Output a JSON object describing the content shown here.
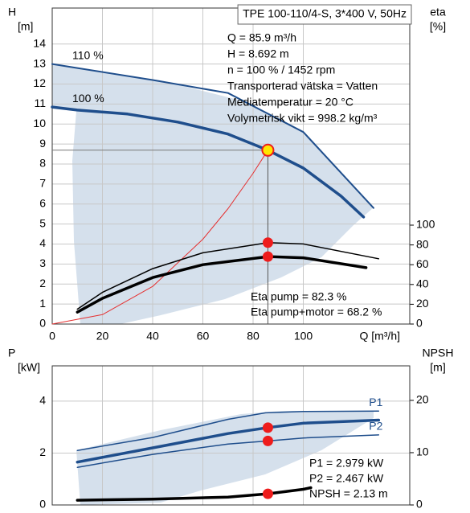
{
  "chart_data": [
    {
      "type": "line",
      "title": "TPE 100-110/4-S, 3*400 V, 50Hz",
      "ylabel": [
        "H",
        "[m]"
      ],
      "y2label": [
        "eta",
        "[%]"
      ],
      "xlabel": "Q [m³/h]",
      "xlim": [
        0,
        142.4
      ],
      "ylim": [
        0,
        15.8
      ],
      "y2lim": [
        0,
        319.5
      ],
      "xticks": [
        0,
        20,
        40,
        60,
        80,
        100
      ],
      "show_xtick_labels": true,
      "yticks": [
        0,
        1,
        2,
        3,
        4,
        5,
        6,
        7,
        8,
        9,
        10,
        11,
        12,
        13,
        14
      ],
      "y2ticks": [
        0,
        20,
        40,
        60,
        80,
        100
      ],
      "grid": true,
      "label_position": "start",
      "series": [
        {
          "name": "110 %",
          "color": "#1f4e8c",
          "width": 2,
          "x": [
            0,
            10,
            40,
            70,
            100,
            128
          ],
          "values": [
            13.0,
            12.8,
            12.2,
            11.55,
            9.6,
            5.8
          ]
        },
        {
          "name": "100 %",
          "color": "#1f4e8c",
          "width": 3.5,
          "x": [
            0,
            10,
            30,
            50,
            70,
            85.9,
            100,
            115,
            124
          ],
          "values": [
            10.85,
            10.7,
            10.5,
            10.1,
            9.5,
            8.692,
            7.8,
            6.4,
            5.35
          ]
        },
        {
          "color": "#e53030",
          "width": 1,
          "x": [
            0,
            20,
            40,
            60,
            70,
            80,
            85.9
          ],
          "values": [
            0,
            0.47,
            1.88,
            4.24,
            5.77,
            7.54,
            8.692
          ]
        },
        {
          "color": "#000000",
          "width": 1.5,
          "axis": "y2",
          "x": [
            10,
            20,
            40,
            60,
            86,
            100,
            130
          ],
          "values": [
            15,
            32,
            56,
            72,
            82.3,
            81,
            66
          ]
        },
        {
          "color": "#000000",
          "width": 3.5,
          "axis": "y2",
          "x": [
            10,
            20,
            40,
            60,
            86,
            100,
            125
          ],
          "values": [
            12,
            26,
            47,
            60,
            68.2,
            67,
            57
          ]
        }
      ],
      "markers": [
        {
          "x": 85.9,
          "y": 8.692,
          "style": "highlight"
        },
        {
          "x": 85.9,
          "y": 82.3,
          "axis": "y2"
        },
        {
          "x": 85.9,
          "y": 68.2,
          "axis": "y2"
        }
      ],
      "info_box": [
        "Q = 85.9 m³/h",
        "H = 8.692 m",
        "n = 100 % / 1452 rpm",
        "Transporterad vätska = Vatten",
        "Mediatemperatur = 20 °C",
        "Volymetrisk vikt = 998.2 kg/m³"
      ],
      "annotations": [
        "Eta pump = 82.3 %",
        "Eta pump+motor = 68.2 %"
      ]
    },
    {
      "type": "line",
      "ylabel": [
        "P",
        "[kW]"
      ],
      "y2label": [
        "NPSH",
        "[m]"
      ],
      "xlim": [
        0,
        142.4
      ],
      "ylim": [
        0,
        5.36
      ],
      "y2lim": [
        0,
        26.6
      ],
      "xticks": [
        0,
        20,
        40,
        60,
        80,
        100
      ],
      "show_xtick_labels": false,
      "yticks": [
        0,
        2,
        4
      ],
      "y2ticks": [
        0,
        10,
        20
      ],
      "grid": true,
      "label_position": "end",
      "series": [
        {
          "name": "P1",
          "color": "#1f4e8c",
          "width": 1.5,
          "x": [
            10,
            40,
            70,
            85,
            100,
            130
          ],
          "values": [
            2.1,
            2.6,
            3.3,
            3.55,
            3.6,
            3.62
          ]
        },
        {
          "name": "P2",
          "color": "#1f4e8c",
          "width": 1.5,
          "x": [
            10,
            40,
            70,
            85.9,
            100,
            130
          ],
          "values": [
            1.45,
            1.95,
            2.35,
            2.467,
            2.58,
            2.7
          ]
        },
        {
          "color": "#1f4e8c",
          "width": 3.5,
          "x": [
            10,
            40,
            70,
            85.9,
            100,
            130
          ],
          "values": [
            1.65,
            2.2,
            2.75,
            2.979,
            3.15,
            3.27
          ]
        },
        {
          "color": "#000000",
          "width": 3.5,
          "axis": "y2",
          "x": [
            10,
            40,
            70,
            85.9,
            100,
            103
          ],
          "values": [
            0.9,
            1.1,
            1.5,
            2.13,
            3.0,
            3.3
          ]
        }
      ],
      "markers": [
        {
          "x": 85.9,
          "y": 2.979
        },
        {
          "x": 85.9,
          "y": 2.467
        },
        {
          "x": 85.9,
          "y": 2.13,
          "axis": "y2"
        }
      ],
      "annotations": [
        "P1 = 2.979 kW",
        "P2 = 2.467 kW",
        "NPSH = 2.13 m"
      ]
    }
  ]
}
